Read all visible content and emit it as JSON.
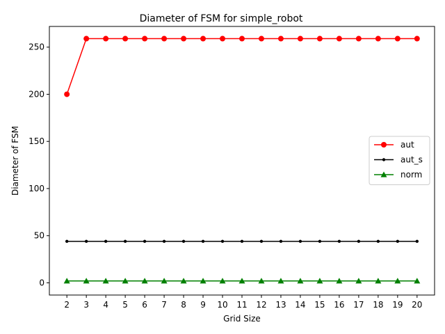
{
  "chart_data": {
    "type": "line",
    "title": "Diameter of FSM for simple_robot",
    "xlabel": "Grid Size",
    "ylabel": "Diameter of FSM",
    "x": [
      2,
      3,
      4,
      5,
      6,
      7,
      8,
      9,
      10,
      11,
      12,
      13,
      14,
      15,
      16,
      17,
      18,
      19,
      20
    ],
    "xticks": [
      "2",
      "3",
      "4",
      "5",
      "6",
      "7",
      "8",
      "9",
      "10",
      "11",
      "12",
      "13",
      "14",
      "15",
      "16",
      "17",
      "18",
      "19",
      "20"
    ],
    "yticks": [
      0,
      50,
      100,
      150,
      200,
      250
    ],
    "xlim": [
      1.1,
      20.9
    ],
    "ylim": [
      -12.95,
      271.95
    ],
    "grid": false,
    "legend_position": "center-right",
    "series": [
      {
        "name": "aut",
        "color": "#ff0000",
        "marker": "circle",
        "values": [
          200,
          259,
          259,
          259,
          259,
          259,
          259,
          259,
          259,
          259,
          259,
          259,
          259,
          259,
          259,
          259,
          259,
          259,
          259
        ]
      },
      {
        "name": "aut_s",
        "color": "#000000",
        "marker": "point",
        "values": [
          44,
          44,
          44,
          44,
          44,
          44,
          44,
          44,
          44,
          44,
          44,
          44,
          44,
          44,
          44,
          44,
          44,
          44,
          44
        ]
      },
      {
        "name": "norm",
        "color": "#008000",
        "marker": "triangle",
        "values": [
          2,
          2,
          2,
          2,
          2,
          2,
          2,
          2,
          2,
          2,
          2,
          2,
          2,
          2,
          2,
          2,
          2,
          2,
          2
        ]
      }
    ]
  }
}
